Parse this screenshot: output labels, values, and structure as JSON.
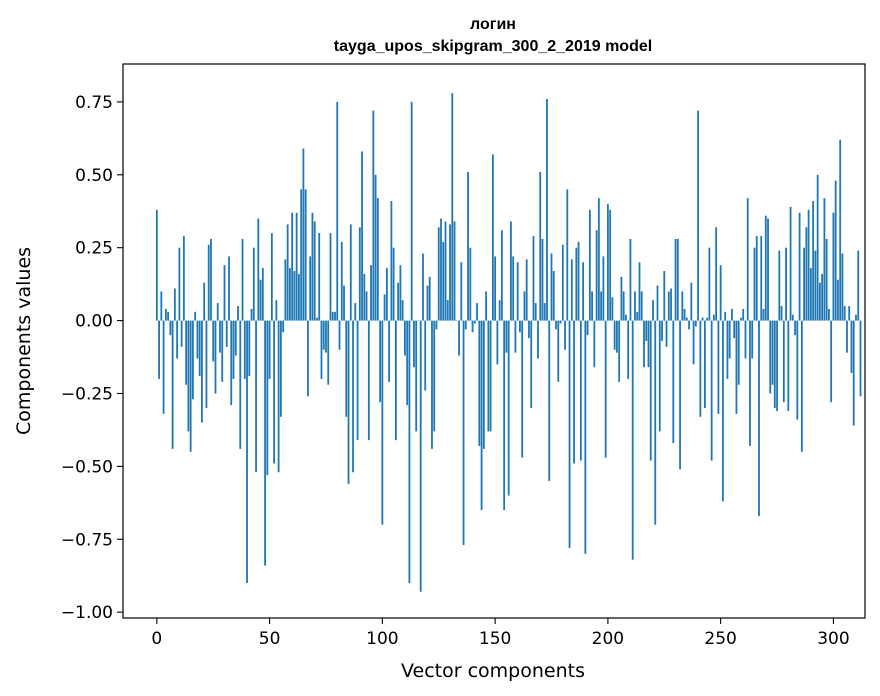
{
  "chart_data": {
    "type": "bar",
    "title": "логин",
    "subtitle": "tayga_upos_skipgram_300_2_2019 model",
    "xlabel": "Vector components",
    "ylabel": "Components values",
    "xlim": [
      -15,
      314
    ],
    "ylim": [
      -1.02,
      0.88
    ],
    "xticks": [
      0,
      50,
      100,
      150,
      200,
      250,
      300
    ],
    "yticks": [
      -1.0,
      -0.75,
      -0.5,
      -0.25,
      0.0,
      0.25,
      0.5,
      0.75
    ],
    "xtick_labels": [
      "0",
      "50",
      "100",
      "150",
      "200",
      "250",
      "300"
    ],
    "ytick_labels": [
      "−1.00",
      "−0.75",
      "−0.50",
      "−0.25",
      "0.00",
      "0.25",
      "0.50",
      "0.75"
    ],
    "bar_color": "#1f77b4",
    "grid": false,
    "legend": "none",
    "values": [
      0.38,
      -0.2,
      0.1,
      -0.32,
      0.04,
      0.03,
      -0.05,
      -0.44,
      0.11,
      -0.13,
      0.25,
      -0.09,
      0.29,
      -0.22,
      -0.38,
      -0.45,
      -0.27,
      0.03,
      -0.13,
      -0.19,
      -0.35,
      0.13,
      -0.3,
      0.26,
      0.28,
      -0.14,
      -0.25,
      0.06,
      -0.11,
      -0.21,
      0.19,
      -0.09,
      0.22,
      -0.29,
      -0.2,
      -0.12,
      0.05,
      -0.44,
      0.28,
      -0.2,
      -0.9,
      -0.19,
      0.04,
      0.25,
      -0.52,
      0.35,
      0.14,
      0.18,
      -0.84,
      -0.53,
      -0.2,
      0.3,
      -0.49,
      0.07,
      -0.52,
      -0.33,
      -0.04,
      0.21,
      0.33,
      0.18,
      0.37,
      0.17,
      0.37,
      0.16,
      0.45,
      0.59,
      0.45,
      -0.26,
      0.22,
      0.37,
      0.34,
      0.01,
      0.3,
      -0.2,
      -0.1,
      -0.11,
      -0.22,
      0.3,
      0.03,
      0.03,
      0.75,
      -0.1,
      0.27,
      0.12,
      -0.33,
      -0.56,
      0.33,
      -0.52,
      0.06,
      -0.41,
      0.32,
      0.58,
      0.16,
      0.1,
      -0.41,
      0.19,
      0.72,
      0.5,
      0.42,
      -0.28,
      -0.7,
      0.09,
      0.18,
      -0.21,
      0.41,
      0.25,
      -0.41,
      0.13,
      0.19,
      0.07,
      -0.12,
      -0.29,
      -0.9,
      0.75,
      -0.16,
      -0.38,
      0.0,
      -0.93,
      0.23,
      -0.24,
      0.12,
      0.15,
      -0.44,
      -0.38,
      -0.03,
      0.32,
      0.35,
      0.27,
      0.34,
      0.07,
      0.33,
      0.78,
      0.34,
      0.0,
      -0.12,
      0.2,
      -0.77,
      -0.03,
      0.51,
      0.25,
      -0.04,
      -0.01,
      0.06,
      -0.43,
      -0.65,
      -0.44,
      0.1,
      -0.38,
      -0.38,
      0.57,
      0.22,
      -0.15,
      0.07,
      0.31,
      -0.65,
      -0.11,
      -0.6,
      0.34,
      0.22,
      -0.11,
      0.2,
      -0.04,
      -0.47,
      0.1,
      0.21,
      -0.06,
      -0.3,
      0.29,
      0.06,
      -0.13,
      0.51,
      0.28,
      0.06,
      0.76,
      -0.55,
      0.23,
      0.17,
      -0.03,
      -0.21,
      -0.01,
      0.26,
      -0.1,
      0.45,
      -0.78,
      0.21,
      -0.49,
      0.25,
      0.27,
      -0.48,
      0.2,
      -0.8,
      -0.05,
      0.38,
      0.1,
      -0.16,
      0.31,
      0.42,
      0.1,
      0.22,
      -0.47,
      0.4,
      0.38,
      0.08,
      -0.1,
      -0.11,
      -0.21,
      0.15,
      0.1,
      0.02,
      -0.2,
      0.28,
      -0.82,
      0.1,
      0.03,
      0.2,
      0.1,
      -0.16,
      -0.07,
      -0.16,
      -0.48,
      0.07,
      -0.7,
      0.12,
      -0.38,
      -0.07,
      0.17,
      -0.09,
      0.1,
      0.11,
      -0.42,
      0.28,
      0.28,
      -0.51,
      0.1,
      0.04,
      0.01,
      -0.03,
      0.13,
      -0.15,
      -0.02,
      0.72,
      -0.33,
      0.01,
      -0.3,
      0.01,
      0.25,
      -0.48,
      0.02,
      0.32,
      -0.32,
      0.19,
      -0.62,
      0.03,
      -0.2,
      -0.13,
      0.04,
      -0.06,
      -0.32,
      -0.22,
      0.01,
      0.04,
      -0.13,
      0.42,
      -0.43,
      -0.13,
      0.25,
      0.29,
      -0.67,
      0.29,
      0.04,
      0.36,
      0.35,
      -0.25,
      -0.22,
      -0.3,
      -0.31,
      0.24,
      0.05,
      -0.28,
      0.25,
      -0.31,
      0.39,
      0.02,
      -0.05,
      -0.34,
      0.37,
      -0.45,
      0.25,
      0.32,
      0.38,
      0.18,
      0.41,
      0.24,
      0.5,
      0.13,
      0.16,
      0.42,
      0.28,
      0.04,
      -0.28,
      0.37,
      0.48,
      0.14,
      0.62,
      0.23,
      0.05,
      -0.11,
      0.05,
      -0.18,
      -0.36,
      0.02,
      0.24,
      -0.26
    ]
  }
}
